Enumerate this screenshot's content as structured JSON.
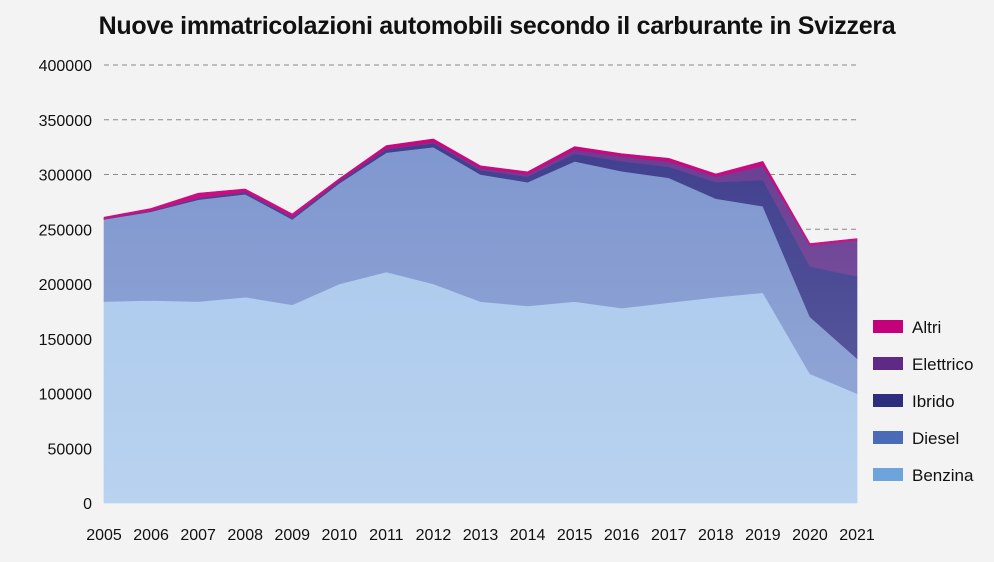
{
  "chart_data": {
    "type": "area",
    "stacked": true,
    "title": "Nuove immatricolazioni automobili secondo il carburante in Svizzera",
    "xlabel": "",
    "ylabel": "",
    "x": [
      "2005",
      "2006",
      "2007",
      "2008",
      "2009",
      "2010",
      "2011",
      "2012",
      "2013",
      "2014",
      "2015",
      "2016",
      "2017",
      "2018",
      "2019",
      "2020",
      "2021"
    ],
    "ylim": [
      0,
      400000
    ],
    "yticks": [
      0,
      50000,
      100000,
      150000,
      200000,
      250000,
      300000,
      350000,
      400000
    ],
    "grid": "horizontal-dashed",
    "legend_position": "right-bottom",
    "series": [
      {
        "name": "Benzina",
        "color": "#a9c8ec",
        "values": [
          184000,
          185000,
          184000,
          188000,
          181000,
          200000,
          211000,
          200000,
          184000,
          180000,
          184000,
          178000,
          183000,
          188000,
          192000,
          118000,
          100000
        ]
      },
      {
        "name": "Diesel",
        "color": "#7f97cf",
        "values": [
          75000,
          81000,
          93000,
          94000,
          78000,
          92000,
          109000,
          125000,
          116000,
          113000,
          128000,
          125000,
          114000,
          90000,
          79000,
          52000,
          32000
        ]
      },
      {
        "name": "Ibrido",
        "color": "#3f3f8e",
        "values": [
          500,
          800,
          1500,
          2000,
          2000,
          2000,
          3000,
          3500,
          4000,
          5000,
          7000,
          9000,
          10000,
          15000,
          24000,
          46000,
          75000
        ]
      },
      {
        "name": "Elettrico",
        "color": "#6a3d93",
        "values": [
          0,
          0,
          0,
          0,
          0,
          200,
          500,
          1000,
          1500,
          2000,
          3500,
          4500,
          4800,
          5000,
          13000,
          19000,
          33000
        ]
      },
      {
        "name": "Altri",
        "color": "#c6087e",
        "values": [
          1500,
          2200,
          4500,
          2800,
          3000,
          2000,
          3000,
          3000,
          2500,
          2500,
          3000,
          2500,
          3000,
          2500,
          4000,
          2000,
          1500
        ]
      }
    ],
    "legend_order": [
      "Altri",
      "Elettrico",
      "Ibrido",
      "Diesel",
      "Benzina"
    ],
    "legend_colors": {
      "Altri": "#c5007d",
      "Elettrico": "#5f2a85",
      "Ibrido": "#2e2e7e",
      "Diesel": "#4a6bb8",
      "Benzina": "#6ea4dc"
    }
  }
}
